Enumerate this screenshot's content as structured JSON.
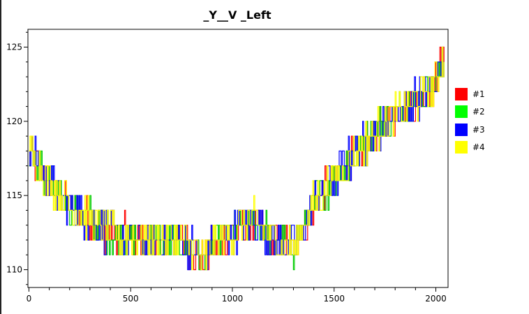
{
  "chart_data": {
    "type": "line",
    "title": "_Y__V _Left",
    "xlabel": "",
    "ylabel": "",
    "xlim": [
      -5,
      2060
    ],
    "ylim": [
      108.8,
      126.2
    ],
    "x_ticks": [
      0,
      500,
      1000,
      1500,
      2000
    ],
    "y_ticks": [
      110,
      115,
      120,
      125
    ],
    "grid": false,
    "legend_position": "right",
    "series": [
      {
        "name": "#1",
        "color": "#ff0000"
      },
      {
        "name": "#2",
        "color": "#00cc00"
      },
      {
        "name": "#3",
        "color": "#0000ff"
      },
      {
        "name": "#4",
        "color": "#ffff00"
      }
    ],
    "x_step": 5,
    "trend": {
      "x": [
        0,
        100,
        200,
        300,
        400,
        500,
        600,
        700,
        800,
        850,
        900,
        1000,
        1100,
        1200,
        1300,
        1400,
        1500,
        1600,
        1700,
        1800,
        1900,
        2000,
        2040
      ],
      "y": [
        118,
        115.8,
        114.3,
        113.4,
        112.4,
        112.2,
        112.1,
        112,
        111.6,
        110.6,
        111.5,
        112.5,
        113.3,
        112,
        111.5,
        114.5,
        116.2,
        117.8,
        119.2,
        120.5,
        121.4,
        122.5,
        124.5
      ]
    },
    "noise_amplitude": 1.3
  }
}
